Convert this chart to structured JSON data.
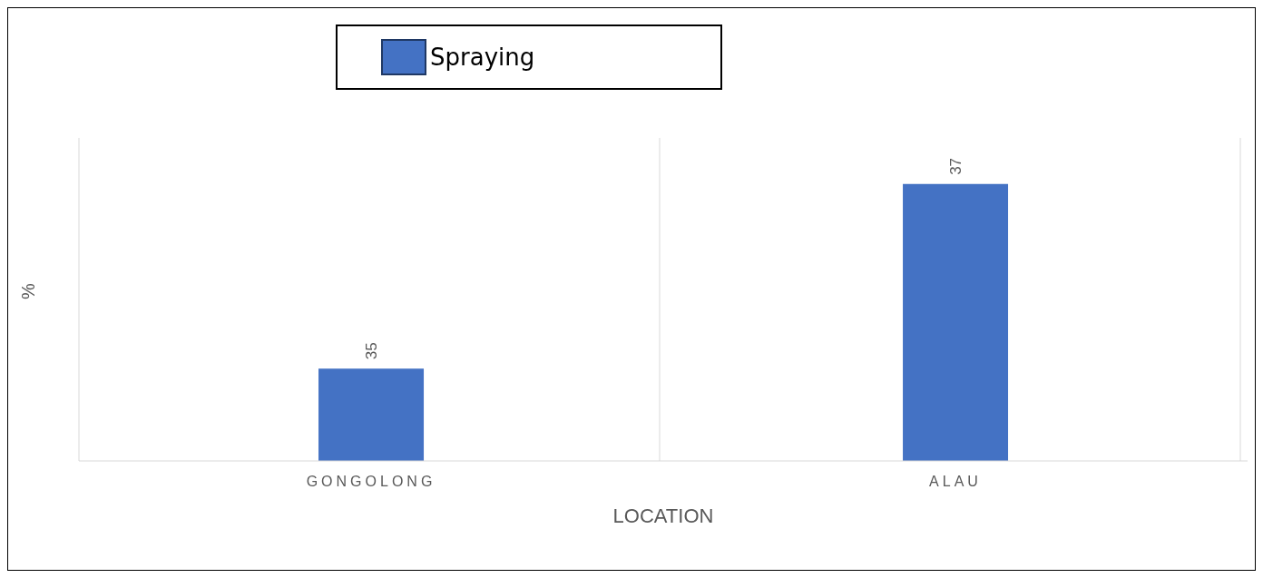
{
  "chart_data": {
    "type": "bar",
    "xlabel": "LOCATION",
    "ylabel": "%",
    "categories": [
      "GONGOLONG",
      "ALAU"
    ],
    "series": [
      {
        "name": "Spraying",
        "color": "#4472c4",
        "values": [
          35,
          37
        ]
      }
    ],
    "ylim": [
      34,
      37.5
    ],
    "data_labels": true,
    "grid": "x",
    "legend": "top"
  }
}
